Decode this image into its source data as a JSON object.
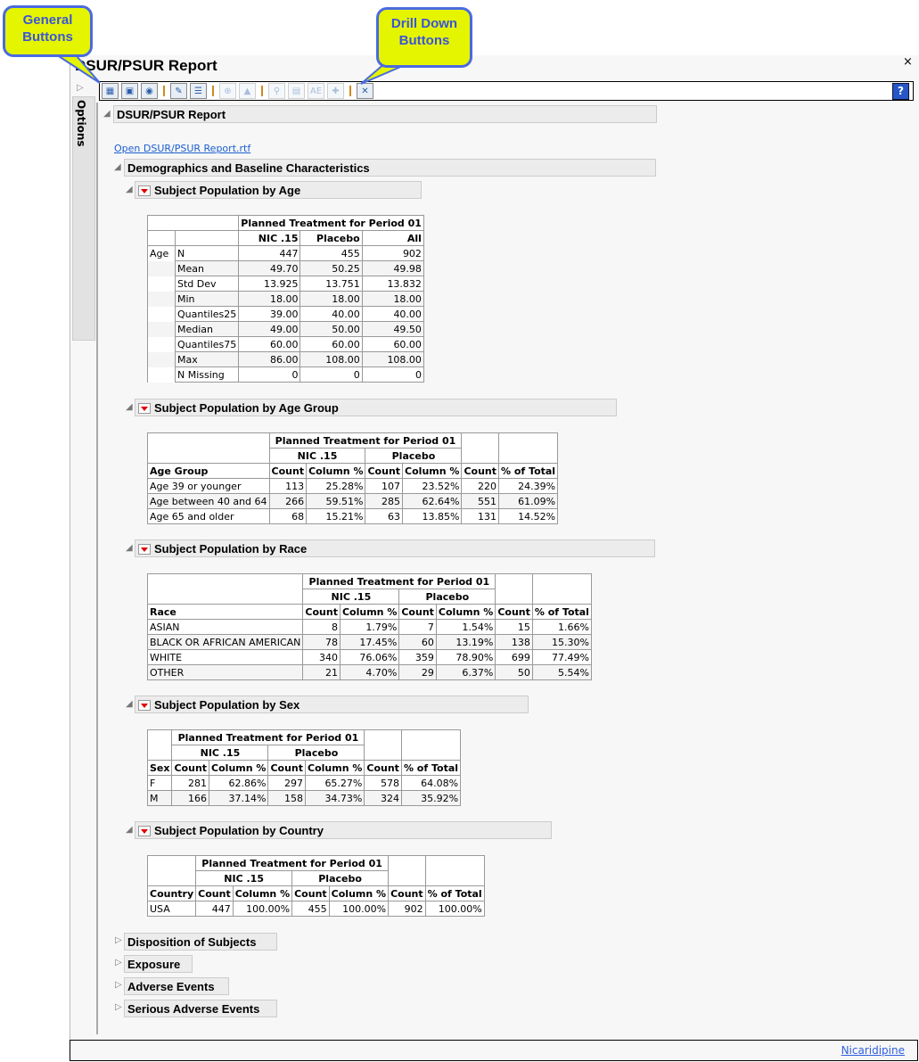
{
  "window": {
    "title": "DSUR/PSUR Report",
    "close": "×",
    "options_label": "Options",
    "status_link": "Nicaridipine"
  },
  "callouts": {
    "general": "General Buttons",
    "drilldown": "Drill Down Buttons"
  },
  "toolbar": {
    "general_buttons": [
      {
        "icon": "data-table-icon",
        "glyph": "▦"
      },
      {
        "icon": "report-icon",
        "glyph": "▣"
      },
      {
        "icon": "web-report-icon",
        "glyph": "◉"
      }
    ],
    "note_buttons": [
      {
        "icon": "add-note-icon",
        "glyph": "✎"
      },
      {
        "icon": "view-notes-icon",
        "glyph": "☰"
      }
    ],
    "filter_buttons": [
      {
        "icon": "filter-icon",
        "glyph": "⊕"
      },
      {
        "icon": "profile-icon",
        "glyph": "▲"
      }
    ],
    "drill_buttons": [
      {
        "icon": "subject-search-icon",
        "glyph": "⚲"
      },
      {
        "icon": "patient-profile-icon",
        "glyph": "▤"
      },
      {
        "icon": "ae-narrative-icon",
        "glyph": "AE"
      },
      {
        "icon": "add-filter-icon",
        "glyph": "✚"
      }
    ],
    "close_button": {
      "icon": "close-x-icon",
      "glyph": "✕"
    },
    "help": "?"
  },
  "report": {
    "title": "DSUR/PSUR Report",
    "link": "Open DSUR/PSUR Report.rtf",
    "demographics": "Demographics and Baseline Characteristics",
    "collapsed": [
      "Disposition of Subjects",
      "Exposure",
      "Adverse Events",
      "Serious Adverse Events"
    ]
  },
  "colors": {
    "callout_bg": "#e5f500",
    "callout_border": "#4a6ae0",
    "link": "#1a5fd0"
  },
  "age": {
    "title": "Subject Population by Age",
    "group_header": "Planned Treatment for Period 01",
    "columns": [
      "NIC .15",
      "Placebo",
      "All"
    ],
    "var": "Age",
    "rows": [
      [
        "N",
        "447",
        "455",
        "902"
      ],
      [
        "Mean",
        "49.70",
        "50.25",
        "49.98"
      ],
      [
        "Std Dev",
        "13.925",
        "13.751",
        "13.832"
      ],
      [
        "Min",
        "18.00",
        "18.00",
        "18.00"
      ],
      [
        "Quantiles25",
        "39.00",
        "40.00",
        "40.00"
      ],
      [
        "Median",
        "49.00",
        "50.00",
        "49.50"
      ],
      [
        "Quantiles75",
        "60.00",
        "60.00",
        "60.00"
      ],
      [
        "Max",
        "86.00",
        "108.00",
        "108.00"
      ],
      [
        "N Missing",
        "0",
        "0",
        "0"
      ]
    ]
  },
  "crosstabs": [
    {
      "title": "Subject Population by Age Group",
      "group_header": "Planned Treatment for Period 01",
      "arms": [
        "NIC .15",
        "Placebo"
      ],
      "columns": [
        "Age Group",
        "Count",
        "Column %",
        "Count",
        "Column %",
        "Count",
        "% of Total"
      ],
      "rows": [
        [
          "Age 39 or younger",
          "113",
          "25.28%",
          "107",
          "23.52%",
          "220",
          "24.39%"
        ],
        [
          "Age between 40 and 64",
          "266",
          "59.51%",
          "285",
          "62.64%",
          "551",
          "61.09%"
        ],
        [
          "Age 65 and older",
          "68",
          "15.21%",
          "63",
          "13.85%",
          "131",
          "14.52%"
        ]
      ]
    },
    {
      "title": "Subject Population by Race",
      "group_header": "Planned Treatment for Period 01",
      "arms": [
        "NIC .15",
        "Placebo"
      ],
      "columns": [
        "Race",
        "Count",
        "Column %",
        "Count",
        "Column %",
        "Count",
        "% of Total"
      ],
      "rows": [
        [
          "ASIAN",
          "8",
          "1.79%",
          "7",
          "1.54%",
          "15",
          "1.66%"
        ],
        [
          "BLACK OR AFRICAN AMERICAN",
          "78",
          "17.45%",
          "60",
          "13.19%",
          "138",
          "15.30%"
        ],
        [
          "WHITE",
          "340",
          "76.06%",
          "359",
          "78.90%",
          "699",
          "77.49%"
        ],
        [
          "OTHER",
          "21",
          "4.70%",
          "29",
          "6.37%",
          "50",
          "5.54%"
        ]
      ]
    },
    {
      "title": "Subject Population by Sex",
      "group_header": "Planned Treatment for Period 01",
      "arms": [
        "NIC .15",
        "Placebo"
      ],
      "columns": [
        "Sex",
        "Count",
        "Column %",
        "Count",
        "Column %",
        "Count",
        "% of Total"
      ],
      "rows": [
        [
          "F",
          "281",
          "62.86%",
          "297",
          "65.27%",
          "578",
          "64.08%"
        ],
        [
          "M",
          "166",
          "37.14%",
          "158",
          "34.73%",
          "324",
          "35.92%"
        ]
      ]
    },
    {
      "title": "Subject Population by Country",
      "group_header": "Planned Treatment for Period 01",
      "arms": [
        "NIC .15",
        "Placebo"
      ],
      "columns": [
        "Country",
        "Count",
        "Column %",
        "Count",
        "Column %",
        "Count",
        "% of Total"
      ],
      "rows": [
        [
          "USA",
          "447",
          "100.00%",
          "455",
          "100.00%",
          "902",
          "100.00%"
        ]
      ]
    }
  ]
}
